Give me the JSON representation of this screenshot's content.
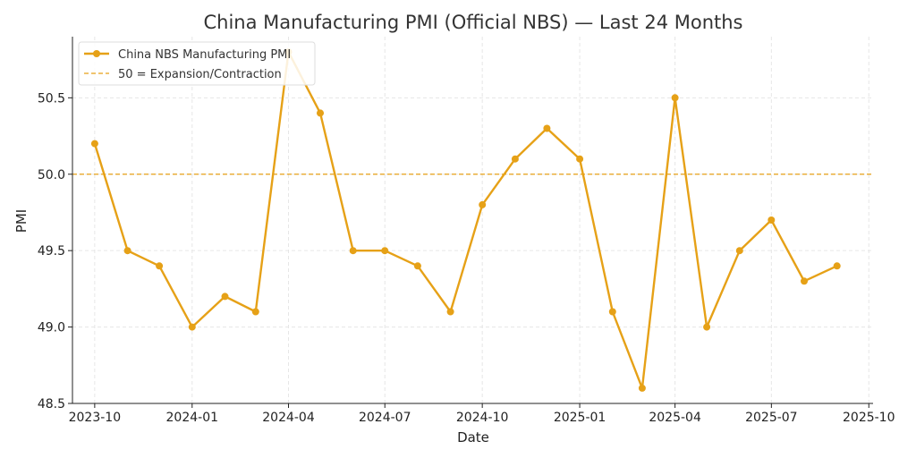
{
  "chart_data": {
    "type": "line",
    "title": "China Manufacturing PMI (Official NBS) — Last 24 Months",
    "xlabel": "Date",
    "ylabel": "PMI",
    "x": [
      "2023-10",
      "2023-11",
      "2023-12",
      "2024-01",
      "2024-02",
      "2024-03",
      "2024-04",
      "2024-05",
      "2024-06",
      "2024-07",
      "2024-08",
      "2024-09",
      "2024-10",
      "2024-11",
      "2024-12",
      "2025-01",
      "2025-02",
      "2025-03",
      "2025-04",
      "2025-05",
      "2025-06",
      "2025-07",
      "2025-08",
      "2025-09"
    ],
    "series": [
      {
        "name": "China NBS Manufacturing PMI",
        "color": "#E6A117",
        "values": [
          50.2,
          49.5,
          49.4,
          49.0,
          49.2,
          49.1,
          50.8,
          50.4,
          49.5,
          49.5,
          49.4,
          49.1,
          49.8,
          50.1,
          50.3,
          50.1,
          49.1,
          48.6,
          50.5,
          49.0,
          49.5,
          49.7,
          49.3,
          49.4
        ]
      }
    ],
    "reference_line": {
      "label": "50 = Expansion/Contraction",
      "value": 50.0,
      "color": "#E6A117",
      "style": "dashed"
    },
    "xticks": [
      "2023-10",
      "2024-01",
      "2024-04",
      "2024-07",
      "2024-10",
      "2025-01",
      "2025-04",
      "2025-07",
      "2025-10"
    ],
    "yticks": [
      "48.5",
      "49.0",
      "49.5",
      "50.0",
      "50.5"
    ],
    "xlim": [
      "2023-09-10",
      "2025-10-05"
    ],
    "ylim": [
      48.5,
      50.9
    ],
    "grid": true,
    "legend_position": "top-left"
  }
}
